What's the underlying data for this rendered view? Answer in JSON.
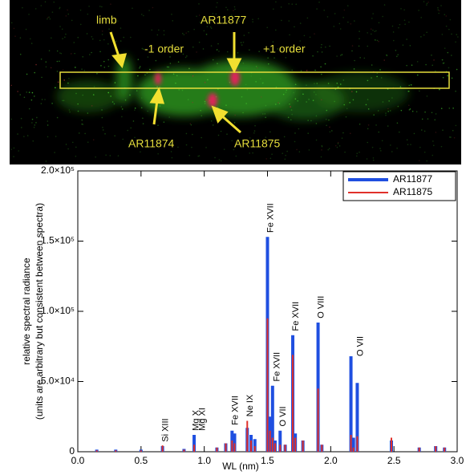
{
  "image": {
    "labels": [
      "limb",
      "-1 order",
      "AR11877",
      "+1 order",
      "AR11874",
      "AR11875"
    ]
  },
  "chart_data": {
    "type": "stem",
    "x_label": "WL (nm)",
    "y_label": [
      "relative spectral radiance",
      "(units are arbitrary but consistent between spectra)"
    ],
    "xlim": [
      0,
      3
    ],
    "xticks": [
      {
        "value": 0,
        "label": "0.0"
      },
      {
        "value": 0.5,
        "label": "0.5"
      },
      {
        "value": 1,
        "label": "1.0"
      },
      {
        "value": 1.5,
        "label": "1.5"
      },
      {
        "value": 2,
        "label": "2.0"
      },
      {
        "value": 2.5,
        "label": "2.5"
      },
      {
        "value": 3,
        "label": "3.0"
      }
    ],
    "ylim": [
      0,
      200000
    ],
    "yticks": [
      0,
      {
        "value": 50000,
        "label": "5.0×10⁴"
      },
      {
        "value": 100000,
        "label": "1.0×10⁵"
      },
      {
        "value": 150000,
        "label": "1.5×10⁵"
      },
      {
        "value": 200000,
        "label": "2.0×10⁵"
      }
    ],
    "legend": "upper right",
    "x": [
      0.15,
      0.3,
      0.5,
      0.67,
      0.84,
      0.92,
      1.1,
      1.17,
      1.22,
      1.24,
      1.34,
      1.37,
      1.4,
      1.5,
      1.52,
      1.54,
      1.56,
      1.6,
      1.64,
      1.7,
      1.72,
      1.78,
      1.9,
      1.93,
      2.16,
      2.18,
      2.21,
      2.48,
      2.7,
      2.83,
      2.9
    ],
    "series": [
      {
        "name": "AR11877",
        "color": "#1f4fe0",
        "values": [
          1500,
          1500,
          1500,
          4000,
          2000,
          12000,
          3000,
          6000,
          15000,
          13000,
          17000,
          12000,
          9000,
          153000,
          25000,
          47000,
          8000,
          15000,
          5000,
          83000,
          13000,
          8000,
          92000,
          5000,
          68000,
          10000,
          49000,
          8000,
          3000,
          4000,
          3000
        ]
      },
      {
        "name": "AR11875",
        "color": "#e0302a",
        "values": [
          1000,
          1000,
          1000,
          4500,
          1500,
          5000,
          3000,
          6000,
          8000,
          6000,
          22000,
          8000,
          4000,
          95000,
          15000,
          10000,
          6000,
          5000,
          5000,
          69000,
          10000,
          8000,
          45000,
          5000,
          12000,
          3000,
          11000,
          10000,
          3000,
          4000,
          3000
        ]
      }
    ],
    "annotations": [
      {
        "text": "Si XIII",
        "x": 0.67,
        "y": 7000
      },
      {
        "text": "Mg X",
        "x": 0.91,
        "y": 15000
      },
      {
        "text": "Mg XI",
        "x": 0.96,
        "y": 15000
      },
      {
        "text": "Fe XVII",
        "x": 1.22,
        "y": 19000
      },
      {
        "text": "Ne IX",
        "x": 1.34,
        "y": 25000
      },
      {
        "text": "Fe XVII",
        "x": 1.5,
        "y": 156000
      },
      {
        "text": "Fe XVII",
        "x": 1.55,
        "y": 50000
      },
      {
        "text": "O VII",
        "x": 1.6,
        "y": 18000
      },
      {
        "text": "Fe XVII",
        "x": 1.7,
        "y": 86000
      },
      {
        "text": "O VIII",
        "x": 1.9,
        "y": 95000
      },
      {
        "text": "O VII",
        "x": 2.21,
        "y": 68000
      }
    ]
  }
}
